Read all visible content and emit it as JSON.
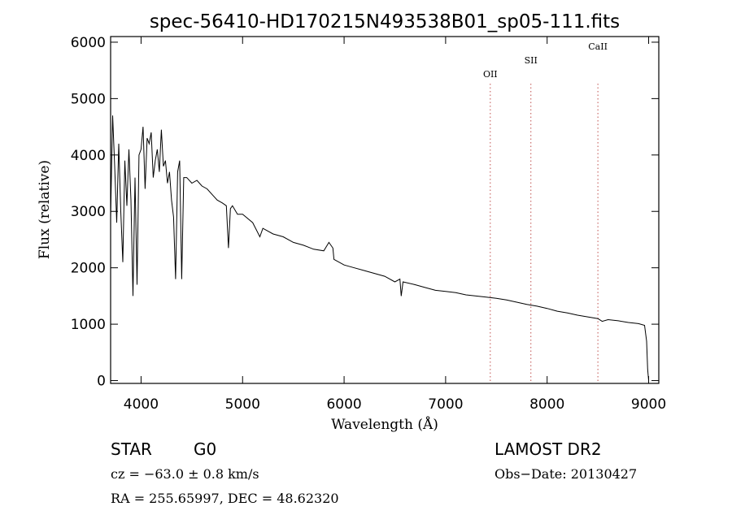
{
  "chart_data": {
    "type": "line",
    "title": "spec-56410-HD170215N493538B01_sp05-111.fits",
    "xlabel": "Wavelength (Å)",
    "ylabel": "Flux (relative)",
    "xlim": [
      3700,
      9100
    ],
    "ylim": [
      -50,
      6100
    ],
    "x_ticks": [
      4000,
      5000,
      6000,
      7000,
      8000,
      9000
    ],
    "y_ticks": [
      0,
      1000,
      2000,
      3000,
      4000,
      5000,
      6000
    ],
    "grid": false,
    "line_color": "#000000",
    "marker_color": "#c0504d",
    "lines": [
      {
        "label": "OII",
        "x": 7440
      },
      {
        "label": "SII",
        "x": 7840
      },
      {
        "label": "CaII",
        "x": 8500
      }
    ],
    "series": [
      {
        "x": [
          3700,
          3720,
          3740,
          3760,
          3780,
          3800,
          3820,
          3840,
          3860,
          3880,
          3900,
          3920,
          3940,
          3960,
          3980,
          4000,
          4020,
          4040,
          4060,
          4080,
          4100,
          4120,
          4140,
          4160,
          4180,
          4200,
          4220,
          4240,
          4260,
          4280,
          4300,
          4320,
          4340,
          4360,
          4380,
          4400,
          4420,
          4450,
          4500,
          4550,
          4600,
          4650,
          4700,
          4750,
          4800,
          4840,
          4861,
          4880,
          4900,
          4950,
          5000,
          5100,
          5170,
          5200,
          5300,
          5400,
          5500,
          5600,
          5700,
          5800,
          5850,
          5890,
          5900,
          6000,
          6100,
          6200,
          6300,
          6400,
          6500,
          6550,
          6563,
          6580,
          6700,
          6800,
          6900,
          7000,
          7100,
          7200,
          7300,
          7400,
          7500,
          7600,
          7700,
          7800,
          7900,
          8000,
          8100,
          8200,
          8300,
          8400,
          8500,
          8542,
          8600,
          8700,
          8800,
          8900,
          8960,
          8980,
          8990,
          9000
        ],
        "y": [
          2900,
          4700,
          3800,
          2800,
          4200,
          3000,
          2100,
          3900,
          3100,
          4100,
          3200,
          1500,
          3600,
          1700,
          4000,
          4100,
          4500,
          3400,
          4300,
          4200,
          4400,
          3600,
          3900,
          4100,
          3700,
          4450,
          3800,
          3900,
          3500,
          3700,
          3200,
          2900,
          1800,
          3700,
          3900,
          1800,
          3600,
          3600,
          3500,
          3550,
          3450,
          3400,
          3300,
          3200,
          3150,
          3100,
          2350,
          3050,
          3100,
          2950,
          2950,
          2800,
          2550,
          2700,
          2600,
          2550,
          2450,
          2400,
          2330,
          2300,
          2450,
          2350,
          2150,
          2050,
          2000,
          1950,
          1900,
          1850,
          1750,
          1800,
          1500,
          1750,
          1700,
          1650,
          1600,
          1580,
          1560,
          1520,
          1500,
          1480,
          1460,
          1430,
          1390,
          1350,
          1320,
          1280,
          1230,
          1200,
          1160,
          1130,
          1100,
          1050,
          1080,
          1060,
          1030,
          1010,
          980,
          700,
          200,
          0
        ]
      }
    ]
  },
  "info": {
    "object_class": "STAR",
    "subclass": "G0",
    "survey": "LAMOST DR2",
    "redshift": "cz = −63.0 ± 0.8 km/s",
    "obs_date": "Obs−Date: 20130427",
    "coords": "RA = 255.65997, DEC =  48.62320"
  }
}
